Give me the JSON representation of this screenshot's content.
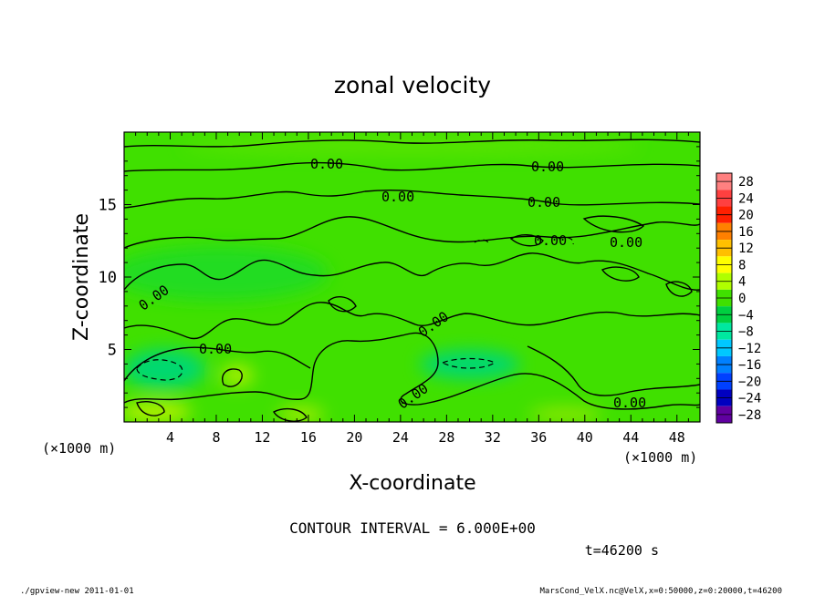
{
  "chart_data": {
    "type": "heatmap",
    "title": "zonal velocity",
    "xlabel": "X-coordinate",
    "ylabel": "Z-coordinate",
    "x_unit": "(×1000 m)",
    "y_unit": "(×1000 m)",
    "xlim": [
      0,
      50
    ],
    "ylim": [
      0,
      20
    ],
    "x_ticks": [
      4,
      8,
      12,
      16,
      20,
      24,
      28,
      32,
      36,
      40,
      44,
      48
    ],
    "y_ticks": [
      5,
      10,
      15
    ],
    "colorbar": {
      "levels": [
        "28",
        "24",
        "20",
        "16",
        "12",
        "8",
        "4",
        "0",
        "−4",
        "−8",
        "−12",
        "−16",
        "−20",
        "−24",
        "−28"
      ],
      "colors": [
        "#ff8080",
        "#ff4040",
        "#ff2000",
        "#ff8000",
        "#ffc000",
        "#ffff00",
        "#b0ff00",
        "#40e000",
        "#00d040",
        "#00e8a0",
        "#00c8ff",
        "#0080ff",
        "#0040ff",
        "#0000c0",
        "#6000a0"
      ]
    },
    "contour_labels": [
      "0.00",
      "0.00",
      "0.00",
      "0.00",
      "0.00",
      "0.00",
      "0.00",
      "0.00",
      "0.00",
      "0.00",
      "0.00"
    ],
    "contour_interval": "CONTOUR INTERVAL = 6.000E+00",
    "time": "t=46200 s"
  },
  "footer": {
    "left": "./gpview-new  2011-01-01",
    "right": "MarsCond_VelX.nc@VelX,x=0:50000,z=0:20000,t=46200"
  }
}
